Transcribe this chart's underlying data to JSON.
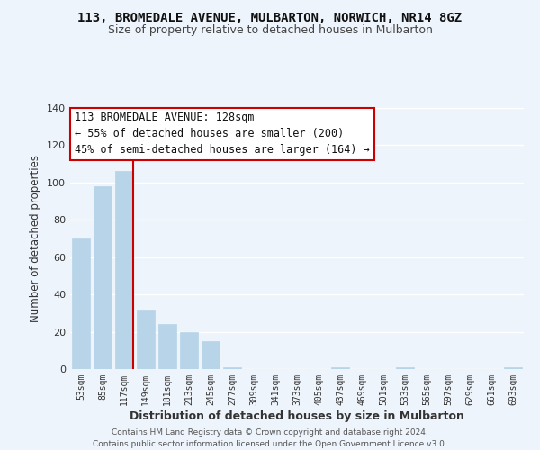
{
  "title": "113, BROMEDALE AVENUE, MULBARTON, NORWICH, NR14 8GZ",
  "subtitle": "Size of property relative to detached houses in Mulbarton",
  "xlabel": "Distribution of detached houses by size in Mulbarton",
  "ylabel": "Number of detached properties",
  "bar_color": "#b8d4e8",
  "bar_edge_color": "#b8d4e8",
  "categories": [
    "53sqm",
    "85sqm",
    "117sqm",
    "149sqm",
    "181sqm",
    "213sqm",
    "245sqm",
    "277sqm",
    "309sqm",
    "341sqm",
    "373sqm",
    "405sqm",
    "437sqm",
    "469sqm",
    "501sqm",
    "533sqm",
    "565sqm",
    "597sqm",
    "629sqm",
    "661sqm",
    "693sqm"
  ],
  "values": [
    70,
    98,
    106,
    32,
    24,
    20,
    15,
    1,
    0,
    0,
    0,
    0,
    1,
    0,
    0,
    1,
    0,
    0,
    0,
    0,
    1
  ],
  "ylim": [
    0,
    140
  ],
  "yticks": [
    0,
    20,
    40,
    60,
    80,
    100,
    120,
    140
  ],
  "property_line_color": "#cc0000",
  "annotation_title": "113 BROMEDALE AVENUE: 128sqm",
  "annotation_line1": "← 55% of detached houses are smaller (200)",
  "annotation_line2": "45% of semi-detached houses are larger (164) →",
  "annotation_box_color": "#ffffff",
  "annotation_box_edge": "#cc0000",
  "footer_line1": "Contains HM Land Registry data © Crown copyright and database right 2024.",
  "footer_line2": "Contains public sector information licensed under the Open Government Licence v3.0.",
  "background_color": "#eef4fb",
  "grid_color": "#ffffff"
}
